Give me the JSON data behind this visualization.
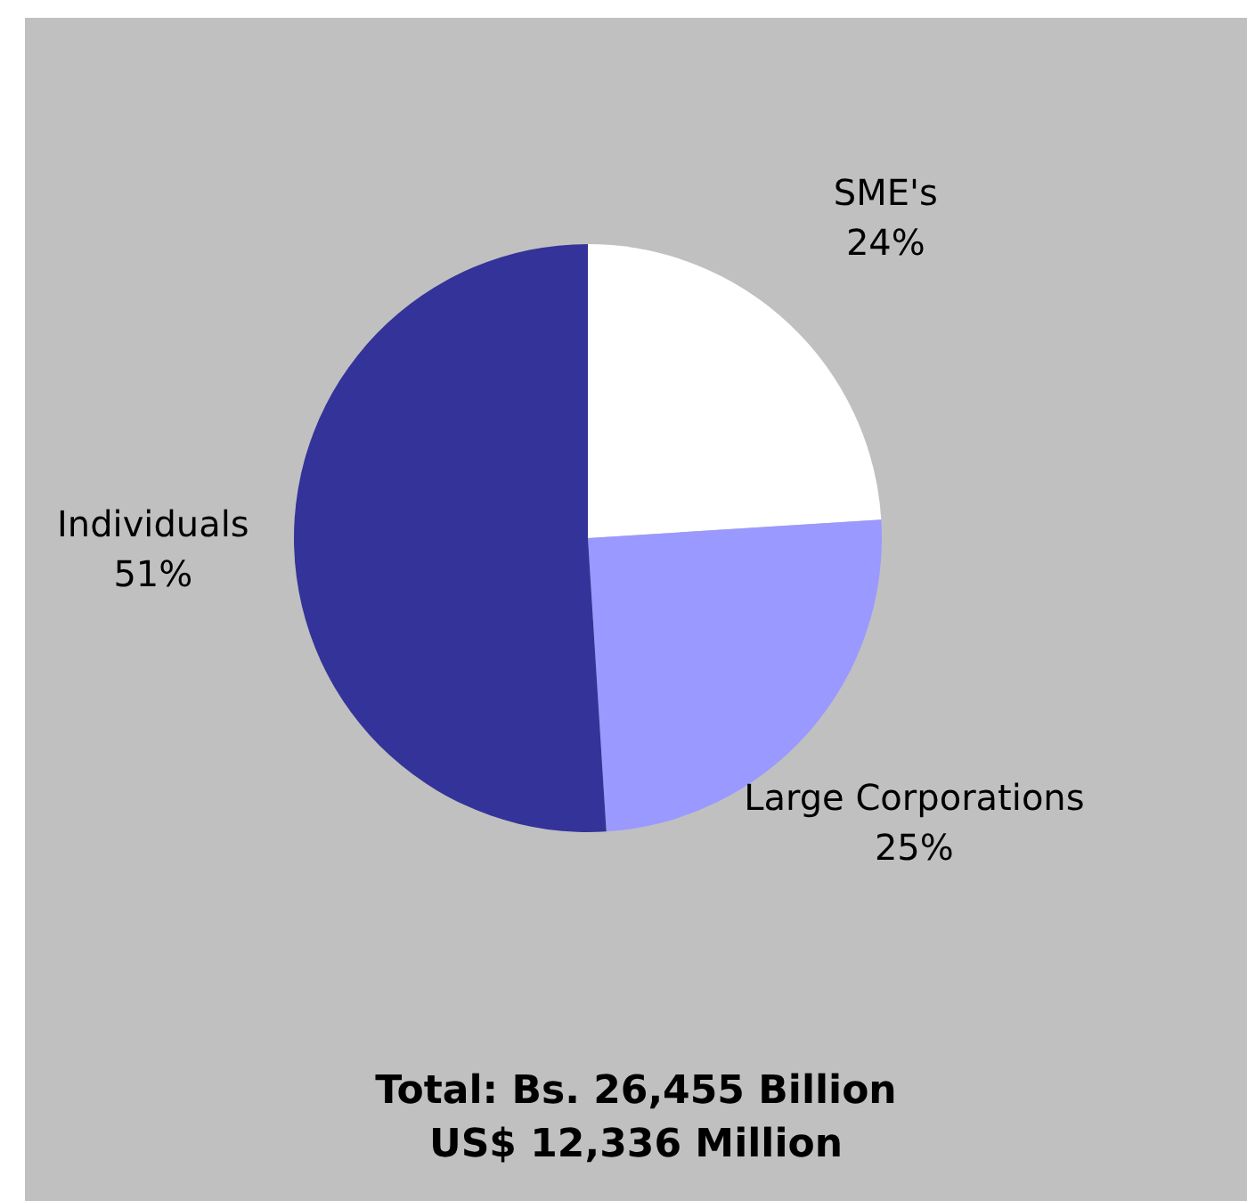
{
  "chart_data": {
    "type": "pie",
    "categories": [
      "SME's",
      "Large Corporations",
      "Individuals"
    ],
    "values": [
      24,
      25,
      51
    ],
    "colors": [
      "#ffffff",
      "#9999ff",
      "#333399"
    ],
    "value_labels": [
      "24%",
      "25%",
      "51%"
    ],
    "legend": false,
    "annotations": [
      "Total: Bs. 26,455 Billion",
      "US$ 12,336 Million"
    ]
  }
}
